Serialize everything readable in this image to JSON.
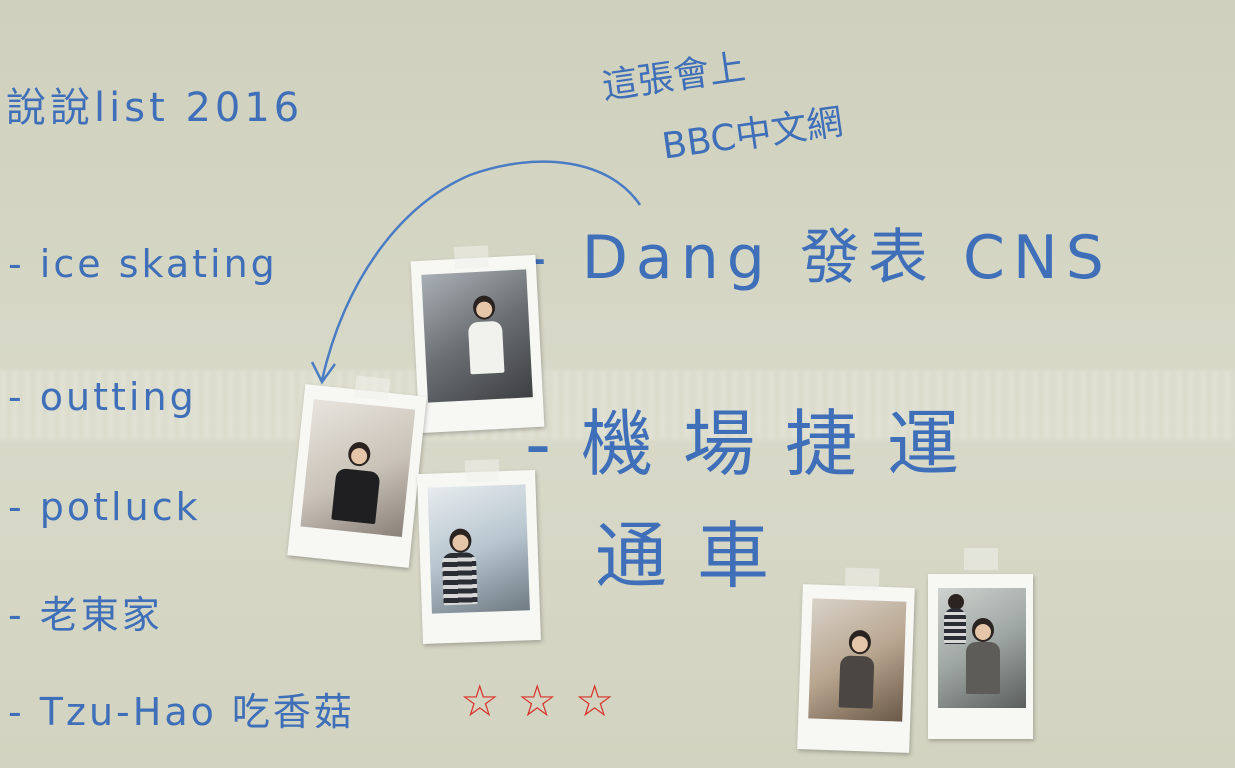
{
  "board": {
    "title": "說說list 2016",
    "items": [
      "- ice skating",
      "- outting",
      "- potluck",
      "- 老東家",
      "- Tzu-Hao 吃香菇"
    ],
    "stars": "☆☆☆",
    "note_line1": "這張會上",
    "note_line2": "BBC中文網",
    "dang": "- Dang 發表 CNS",
    "airport": "-機場捷運",
    "tong": "通車"
  },
  "colors": {
    "marker_blue": "#3f6fb8",
    "marker_red": "#d8322b",
    "board": "#d4d5c3"
  }
}
